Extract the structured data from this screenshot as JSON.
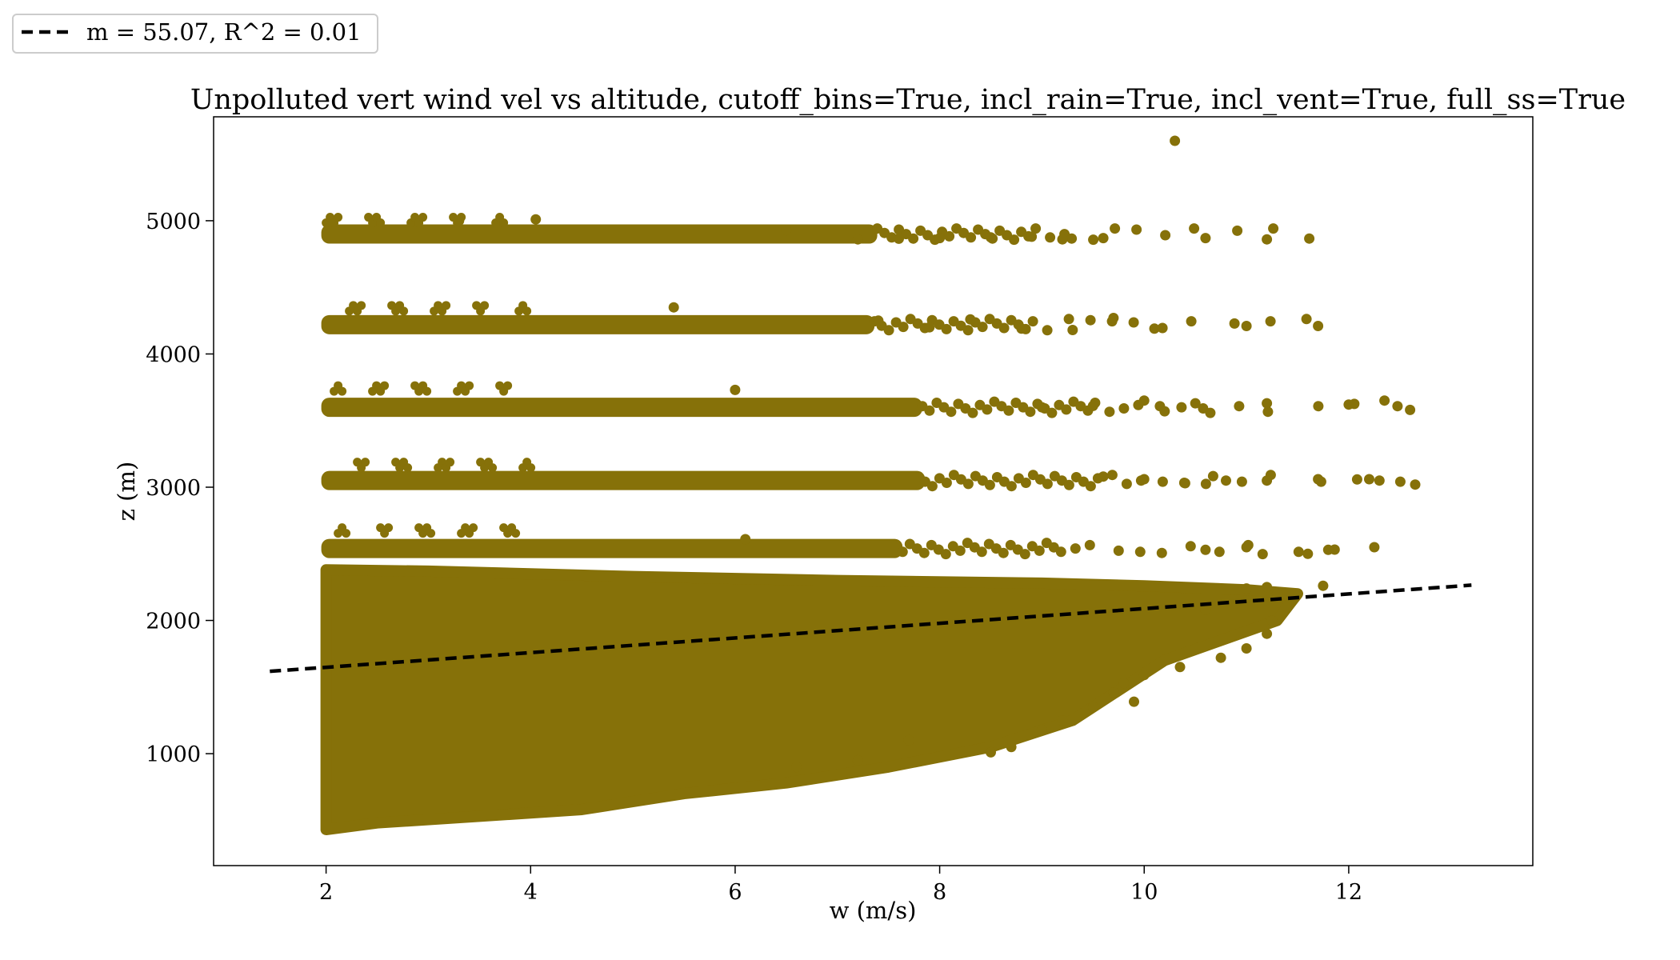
{
  "chart_data": {
    "type": "scatter",
    "title": "Unpolluted vert wind vel vs altitude, cutoff_bins=True, incl_rain=True, incl_vent=True, full_ss=True",
    "xlabel": "w (m/s)",
    "ylabel": "z (m)",
    "xlim": [
      0.9,
      13.8
    ],
    "ylim": [
      160,
      5780
    ],
    "xticks": [
      2,
      4,
      6,
      8,
      10,
      12
    ],
    "yticks": [
      1000,
      2000,
      3000,
      4000,
      5000
    ],
    "xtick_labels": [
      "2",
      "4",
      "6",
      "8",
      "10",
      "12"
    ],
    "ytick_labels": [
      "1000",
      "2000",
      "3000",
      "4000",
      "5000"
    ],
    "grid": false,
    "legend_position": "outside-top-left",
    "legend": [
      {
        "label": "m = 55.07, R^2 = 0.01",
        "style": "dashed",
        "color": "#000000"
      }
    ],
    "series": [
      {
        "type": "scatter",
        "color": "#867109",
        "bands": [
          {
            "z": 4900,
            "x_start": 2.0,
            "x_end": 11.8
          },
          {
            "z": 4220,
            "x_start": 2.0,
            "x_end": 11.75
          },
          {
            "z": 3600,
            "x_start": 2.0,
            "x_end": 12.6
          },
          {
            "z": 3050,
            "x_start": 2.0,
            "x_end": 12.65
          },
          {
            "z": 2540,
            "x_start": 2.0,
            "x_end": 12.25
          }
        ],
        "cloud_outline": [
          [
            2.0,
            430
          ],
          [
            2.0,
            2380
          ],
          [
            3.0,
            2370
          ],
          [
            5.0,
            2330
          ],
          [
            7.0,
            2300
          ],
          [
            9.0,
            2280
          ],
          [
            10.0,
            2260
          ],
          [
            11.0,
            2230
          ],
          [
            11.5,
            2200
          ],
          [
            11.3,
            2000
          ],
          [
            10.2,
            1700
          ],
          [
            9.3,
            1250
          ],
          [
            8.5,
            1050
          ],
          [
            7.5,
            900
          ],
          [
            6.5,
            780
          ],
          [
            5.5,
            700
          ],
          [
            4.5,
            580
          ],
          [
            3.5,
            530
          ],
          [
            2.5,
            480
          ]
        ],
        "outliers": [
          [
            10.3,
            5600
          ],
          [
            4.05,
            5010
          ],
          [
            3.3,
            5000
          ],
          [
            9.6,
            4870
          ],
          [
            10.6,
            4870
          ],
          [
            11.2,
            4860
          ],
          [
            9.2,
            4860
          ],
          [
            8.9,
            4880
          ],
          [
            8.5,
            4875
          ],
          [
            8.0,
            4870
          ],
          [
            7.6,
            4865
          ],
          [
            7.2,
            4860
          ],
          [
            6.5,
            4930
          ],
          [
            11.7,
            4210
          ],
          [
            11.0,
            4210
          ],
          [
            9.7,
            4270
          ],
          [
            10.1,
            4190
          ],
          [
            9.3,
            4180
          ],
          [
            8.8,
            4190
          ],
          [
            8.3,
            4260
          ],
          [
            7.9,
            4200
          ],
          [
            7.4,
            4250
          ],
          [
            5.4,
            4350
          ],
          [
            12.35,
            3650
          ],
          [
            12.6,
            3580
          ],
          [
            12.0,
            3620
          ],
          [
            11.2,
            3630
          ],
          [
            10.5,
            3630
          ],
          [
            10.0,
            3650
          ],
          [
            9.5,
            3610
          ],
          [
            9.0,
            3600
          ],
          [
            6.0,
            3730
          ],
          [
            10.2,
            3570
          ],
          [
            12.65,
            3020
          ],
          [
            12.2,
            3060
          ],
          [
            12.3,
            3050
          ],
          [
            11.7,
            3060
          ],
          [
            11.2,
            3050
          ],
          [
            10.8,
            3050
          ],
          [
            10.4,
            3030
          ],
          [
            10.0,
            3060
          ],
          [
            9.6,
            3080
          ],
          [
            12.25,
            2550
          ],
          [
            11.8,
            2530
          ],
          [
            11.6,
            2500
          ],
          [
            11.0,
            2550
          ],
          [
            10.6,
            2530
          ],
          [
            6.1,
            2610
          ],
          [
            11.75,
            2260
          ],
          [
            11.3,
            2200
          ],
          [
            11.2,
            2250
          ],
          [
            11.0,
            2240
          ],
          [
            10.6,
            2110
          ],
          [
            10.6,
            2080
          ],
          [
            11.25,
            2000
          ],
          [
            11.2,
            1900
          ],
          [
            11.0,
            1790
          ],
          [
            10.75,
            1720
          ],
          [
            10.35,
            1650
          ],
          [
            10.0,
            1590
          ],
          [
            9.7,
            1460
          ],
          [
            9.5,
            1350
          ],
          [
            9.2,
            1250
          ],
          [
            9.0,
            1180
          ],
          [
            8.7,
            1050
          ],
          [
            8.5,
            1010
          ],
          [
            9.8,
            1530
          ],
          [
            9.9,
            1390
          ],
          [
            7.7,
            1100
          ],
          [
            7.2,
            950
          ],
          [
            6.6,
            900
          ]
        ]
      },
      {
        "type": "line",
        "style": "dashed",
        "color": "#000000",
        "x": [
          1.45,
          13.2
        ],
        "y": [
          1618,
          2265
        ]
      }
    ]
  }
}
